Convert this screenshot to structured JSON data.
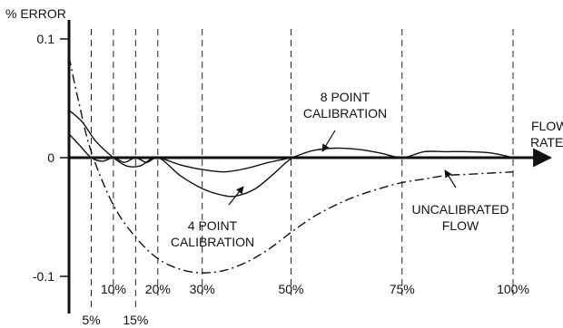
{
  "chart_data": {
    "type": "line",
    "ylabel": "% ERROR",
    "xlabel_lines": [
      "FLOW",
      "RATE"
    ],
    "ylim": [
      -0.1,
      0.1
    ],
    "xlim": [
      0,
      100
    ],
    "y_ticks": [
      {
        "value": 0.1,
        "label": "0.1"
      },
      {
        "value": 0,
        "label": "0"
      },
      {
        "value": -0.1,
        "label": "-0.1"
      }
    ],
    "x_ticks": [
      {
        "value": 5,
        "label": "5%",
        "row": 2
      },
      {
        "value": 10,
        "label": "10%",
        "row": 1
      },
      {
        "value": 15,
        "label": "15%",
        "row": 2
      },
      {
        "value": 20,
        "label": "20%",
        "row": 1
      },
      {
        "value": 30,
        "label": "30%",
        "row": 1
      },
      {
        "value": 50,
        "label": "50%",
        "row": 1
      },
      {
        "value": 75,
        "label": "75%",
        "row": 1
      },
      {
        "value": 100,
        "label": "100%",
        "row": 1
      }
    ],
    "series": [
      {
        "name": "UNCALIBRATED FLOW",
        "style": "dashdot",
        "x": [
          0,
          2,
          5,
          10,
          15,
          20,
          25,
          30,
          35,
          40,
          45,
          50,
          55,
          60,
          65,
          70,
          75,
          80,
          85,
          90,
          95,
          100
        ],
        "y": [
          0.085,
          0.05,
          0.005,
          -0.04,
          -0.067,
          -0.085,
          -0.094,
          -0.097,
          -0.095,
          -0.088,
          -0.077,
          -0.063,
          -0.05,
          -0.04,
          -0.032,
          -0.026,
          -0.021,
          -0.018,
          -0.015,
          -0.014,
          -0.013,
          -0.012
        ]
      },
      {
        "name": "4 POINT CALIBRATION",
        "style": "solid",
        "x": [
          0,
          3,
          6,
          10,
          13,
          16,
          20,
          25,
          30,
          35,
          38,
          42,
          46,
          50,
          53
        ],
        "y": [
          0.04,
          0.03,
          0.014,
          0,
          -0.007,
          -0.007,
          0,
          -0.015,
          -0.026,
          -0.032,
          -0.032,
          -0.026,
          -0.014,
          -0.001,
          0
        ]
      },
      {
        "name": "8 POINT CALIBRATION",
        "style": "solid",
        "x": [
          0,
          2.5,
          5,
          7.5,
          10,
          12.5,
          15,
          17.5,
          20,
          25,
          30,
          35,
          40,
          45,
          50,
          55,
          60,
          65,
          70,
          75,
          80,
          85,
          90,
          95,
          100
        ],
        "y": [
          0.02,
          0.01,
          0,
          -0.003,
          0,
          -0.004,
          0,
          -0.004,
          0,
          -0.006,
          -0.01,
          -0.012,
          -0.009,
          -0.004,
          0,
          0.006,
          0.008,
          0.007,
          0.004,
          0,
          0.005,
          0.005,
          0.005,
          0.004,
          0
        ]
      }
    ],
    "annotations": [
      {
        "text_lines": [
          "8 POINT",
          "CALIBRATION"
        ],
        "series": "8 POINT CALIBRATION"
      },
      {
        "text_lines": [
          "4 POINT",
          "CALIBRATION"
        ],
        "series": "4 POINT CALIBRATION"
      },
      {
        "text_lines": [
          "UNCALIBRATED",
          "FLOW"
        ],
        "series": "UNCALIBRATED FLOW"
      }
    ],
    "grid": "vertical dashed lines at x ticks",
    "legend": "none (direct labels with arrows)"
  }
}
